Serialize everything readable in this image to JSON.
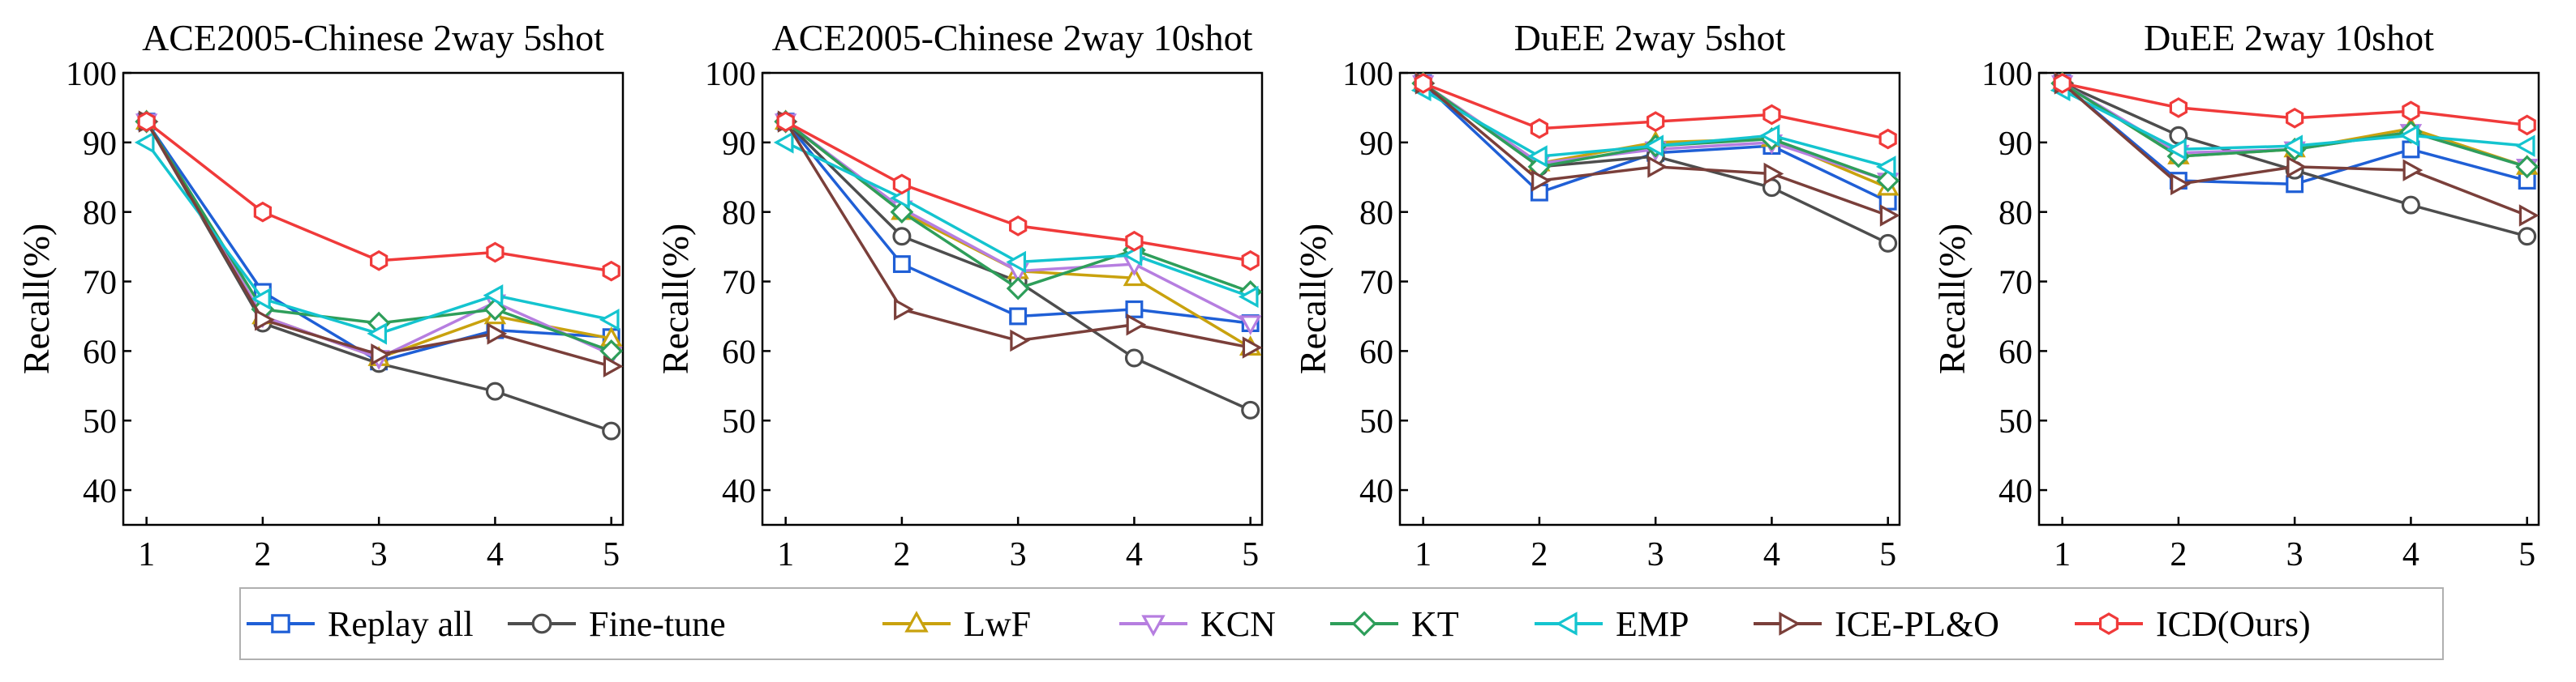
{
  "chart_data": [
    {
      "type": "line",
      "title": "ACE2005-Chinese 2way 5shot",
      "xlabel": "",
      "ylabel": "Recall(%)",
      "x": [
        1,
        2,
        3,
        4,
        5
      ],
      "xlim": [
        0.8,
        5.1
      ],
      "ylim": [
        35,
        100
      ],
      "yticks": [
        40,
        50,
        60,
        70,
        80,
        90,
        100
      ],
      "grid": false,
      "series": [
        {
          "name": "Replay all",
          "values": [
            93.0,
            68.5,
            58.5,
            63.0,
            62.0
          ]
        },
        {
          "name": "Fine-tune",
          "values": [
            93.0,
            64.0,
            58.2,
            54.2,
            48.5
          ]
        },
        {
          "name": "LwF",
          "values": [
            93.0,
            65.0,
            59.0,
            65.0,
            61.8
          ]
        },
        {
          "name": "KCN",
          "values": [
            93.0,
            65.0,
            59.0,
            67.0,
            59.5
          ]
        },
        {
          "name": "KT",
          "values": [
            93.0,
            66.0,
            64.0,
            66.0,
            60.0
          ]
        },
        {
          "name": "EMP",
          "values": [
            90.0,
            67.5,
            62.5,
            68.0,
            64.5
          ]
        },
        {
          "name": "ICE-PL&O",
          "values": [
            93.0,
            64.5,
            59.5,
            62.5,
            57.8
          ]
        },
        {
          "name": "ICD(Ours)",
          "values": [
            93.0,
            80.0,
            73.0,
            74.2,
            71.5
          ]
        }
      ]
    },
    {
      "type": "line",
      "title": "ACE2005-Chinese 2way 10shot",
      "xlabel": "",
      "ylabel": "Recall(%)",
      "x": [
        1,
        2,
        3,
        4,
        5
      ],
      "xlim": [
        0.8,
        5.1
      ],
      "ylim": [
        35,
        100
      ],
      "yticks": [
        40,
        50,
        60,
        70,
        80,
        90,
        100
      ],
      "grid": false,
      "series": [
        {
          "name": "Replay all",
          "values": [
            93.0,
            72.5,
            65.0,
            66.0,
            64.0
          ]
        },
        {
          "name": "Fine-tune",
          "values": [
            93.0,
            76.5,
            70.0,
            59.0,
            51.5
          ]
        },
        {
          "name": "LwF",
          "values": [
            93.0,
            80.0,
            71.5,
            70.5,
            60.5
          ]
        },
        {
          "name": "KCN",
          "values": [
            93.0,
            80.5,
            71.5,
            72.5,
            64.0
          ]
        },
        {
          "name": "KT",
          "values": [
            93.0,
            80.0,
            69.0,
            74.5,
            68.5
          ]
        },
        {
          "name": "EMP",
          "values": [
            90.0,
            82.0,
            72.8,
            73.8,
            67.8
          ]
        },
        {
          "name": "ICE-PL&O",
          "values": [
            93.0,
            66.0,
            61.5,
            63.8,
            60.5
          ]
        },
        {
          "name": "ICD(Ours)",
          "values": [
            93.0,
            84.0,
            78.0,
            75.8,
            73.0
          ]
        }
      ]
    },
    {
      "type": "line",
      "title": "DuEE 2way 5shot",
      "xlabel": "",
      "ylabel": "Recall(%)",
      "x": [
        1,
        2,
        3,
        4,
        5
      ],
      "xlim": [
        0.8,
        5.1
      ],
      "ylim": [
        35,
        100
      ],
      "yticks": [
        40,
        50,
        60,
        70,
        80,
        90,
        100
      ],
      "grid": false,
      "series": [
        {
          "name": "Replay all",
          "values": [
            98.5,
            82.8,
            88.5,
            89.5,
            81.5
          ]
        },
        {
          "name": "Fine-tune",
          "values": [
            98.5,
            86.5,
            88.0,
            83.5,
            75.5
          ]
        },
        {
          "name": "LwF",
          "values": [
            98.5,
            87.0,
            90.0,
            90.5,
            83.5
          ]
        },
        {
          "name": "KCN",
          "values": [
            98.5,
            87.0,
            89.0,
            90.0,
            84.5
          ]
        },
        {
          "name": "KT",
          "values": [
            98.5,
            86.5,
            89.5,
            90.5,
            84.5
          ]
        },
        {
          "name": "EMP",
          "values": [
            97.5,
            88.0,
            89.5,
            91.0,
            86.5
          ]
        },
        {
          "name": "ICE-PL&O",
          "values": [
            98.5,
            84.5,
            86.5,
            85.5,
            79.5
          ]
        },
        {
          "name": "ICD(Ours)",
          "values": [
            98.5,
            92.0,
            93.0,
            94.0,
            90.5
          ]
        }
      ]
    },
    {
      "type": "line",
      "title": "DuEE 2way 10shot",
      "xlabel": "",
      "ylabel": "Recall(%)",
      "x": [
        1,
        2,
        3,
        4,
        5
      ],
      "xlim": [
        0.8,
        5.1
      ],
      "ylim": [
        35,
        100
      ],
      "yticks": [
        40,
        50,
        60,
        70,
        80,
        90,
        100
      ],
      "grid": false,
      "series": [
        {
          "name": "Replay all",
          "values": [
            98.5,
            84.5,
            84.0,
            89.0,
            84.5
          ]
        },
        {
          "name": "Fine-tune",
          "values": [
            98.5,
            91.0,
            86.0,
            81.0,
            76.5
          ]
        },
        {
          "name": "LwF",
          "values": [
            98.5,
            88.0,
            89.0,
            92.0,
            86.5
          ]
        },
        {
          "name": "KCN",
          "values": [
            98.5,
            88.5,
            89.0,
            91.5,
            86.5
          ]
        },
        {
          "name": "KT",
          "values": [
            98.5,
            88.0,
            89.0,
            91.5,
            86.5
          ]
        },
        {
          "name": "EMP",
          "values": [
            97.5,
            89.0,
            89.5,
            91.0,
            89.5
          ]
        },
        {
          "name": "ICE-PL&O",
          "values": [
            98.5,
            84.0,
            86.5,
            86.0,
            79.5
          ]
        },
        {
          "name": "ICD(Ours)",
          "values": [
            98.5,
            95.0,
            93.5,
            94.5,
            92.5
          ]
        }
      ]
    }
  ],
  "legend": {
    "placement": "bottom-center",
    "items": [
      {
        "name": "Replay all",
        "color": "#1f5fd6",
        "marker": "square"
      },
      {
        "name": "Fine-tune",
        "color": "#4d4d4d",
        "marker": "circle"
      },
      {
        "name": "LwF",
        "color": "#c9a20e",
        "marker": "triangle-up"
      },
      {
        "name": "KCN",
        "color": "#b67ee0",
        "marker": "triangle-down"
      },
      {
        "name": "KT",
        "color": "#2e9e5a",
        "marker": "diamond"
      },
      {
        "name": "EMP",
        "color": "#14c4cf",
        "marker": "triangle-left"
      },
      {
        "name": "ICE-PL&O",
        "color": "#7a3f3a",
        "marker": "triangle-right"
      },
      {
        "name": "ICD(Ours)",
        "color": "#f03a3a",
        "marker": "hexagon"
      }
    ]
  }
}
